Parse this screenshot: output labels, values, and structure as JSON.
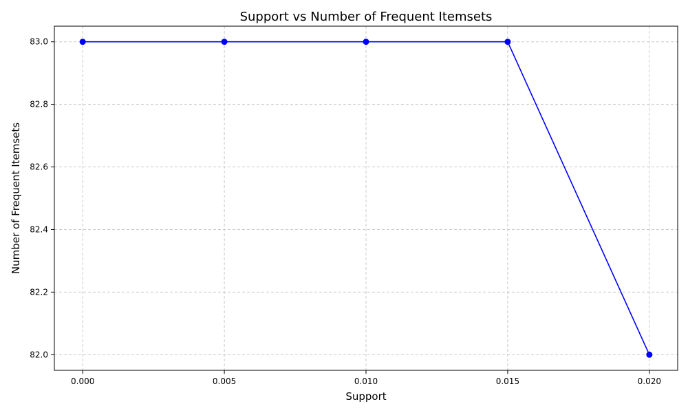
{
  "chart_data": {
    "type": "line",
    "title": "Support vs Number of Frequent Itemsets",
    "xlabel": "Support",
    "ylabel": "Number of Frequent Itemsets",
    "x": [
      0.0,
      0.005,
      0.01,
      0.015,
      0.02
    ],
    "series": [
      {
        "values": [
          83,
          83,
          83,
          83,
          82
        ],
        "color": "#0000ff",
        "marker": "circle"
      }
    ],
    "xlim": [
      -0.001,
      0.021
    ],
    "ylim": [
      81.95,
      83.05
    ],
    "xticks": [
      0.0,
      0.005,
      0.01,
      0.015,
      0.02
    ],
    "xtick_labels": [
      "0.000",
      "0.005",
      "0.010",
      "0.015",
      "0.020"
    ],
    "yticks": [
      82.0,
      82.2,
      82.4,
      82.6,
      82.8,
      83.0
    ],
    "ytick_labels": [
      "82.0",
      "82.2",
      "82.4",
      "82.6",
      "82.8",
      "83.0"
    ],
    "grid": true,
    "grid_style": "dashed",
    "grid_color": "#c8c8c8"
  }
}
